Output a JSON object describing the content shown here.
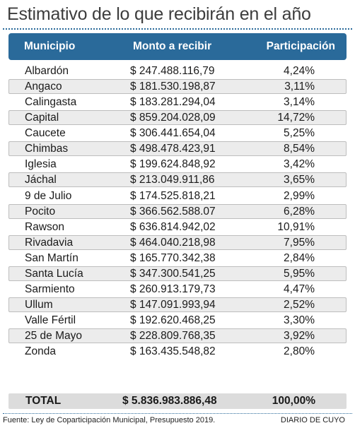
{
  "title": "Estimativo de lo que recibirán en el año",
  "headers": {
    "municipio": "Municipio",
    "monto": "Monto  a recibir",
    "participacion": "Participación"
  },
  "rows": [
    {
      "municipio": "Albardón",
      "monto": "$ 247.488.116,79",
      "participacion": "4,24%"
    },
    {
      "municipio": "Angaco",
      "monto": "$ 181.530.198,87",
      "participacion": "3,11%"
    },
    {
      "municipio": "Calingasta",
      "monto": "$ 183.281.294,04",
      "participacion": "3,14%"
    },
    {
      "municipio": "Capital",
      "monto": "$ 859.204.028,09",
      "participacion": "14,72%"
    },
    {
      "municipio": "Caucete",
      "monto": "$ 306.441.654,04",
      "participacion": "5,25%"
    },
    {
      "municipio": "Chimbas",
      "monto": "$ 498.478.423,91",
      "participacion": "8,54%"
    },
    {
      "municipio": "Iglesia",
      "monto": "$ 199.624.848,92",
      "participacion": "3,42%"
    },
    {
      "municipio": "Jáchal",
      "monto": "$ 213.049.911,86",
      "participacion": "3,65%"
    },
    {
      "municipio": "9 de Julio",
      "monto": "$ 174.525.818,21",
      "participacion": "2,99%"
    },
    {
      "municipio": "Pocito",
      "monto": "$ 366.562.588.07",
      "participacion": "6,28%"
    },
    {
      "municipio": "Rawson",
      "monto": "$ 636.814.942,02",
      "participacion": "10,91%"
    },
    {
      "municipio": "Rivadavia",
      "monto": "$ 464.040.218,98",
      "participacion": "7,95%"
    },
    {
      "municipio": "San Martín",
      "monto": "$ 165.770.342,38",
      "participacion": "2,84%"
    },
    {
      "municipio": "Santa Lucía",
      "monto": "$ 347.300.541,25",
      "participacion": "5,95%"
    },
    {
      "municipio": "Sarmiento",
      "monto": "$ 260.913.179,73",
      "participacion": "4,47%"
    },
    {
      "municipio": "Ullum",
      "monto": "$ 147.091.993,94",
      "participacion": "2,52%"
    },
    {
      "municipio": "Valle Fértil",
      "monto": "$ 192.620.468,25",
      "participacion": "3,30%"
    },
    {
      "municipio": "25 de Mayo",
      "monto": "$ 228.809.768,35",
      "participacion": "3,92%"
    },
    {
      "municipio": "Zonda",
      "monto": "$ 163.435.548,82",
      "participacion": "2,80%"
    }
  ],
  "total": {
    "municipio": "TOTAL",
    "monto": "$ 5.836.983.886,48",
    "participacion": "100,00%"
  },
  "source": "Fuente: Ley de Coparticipación Municipal, Presupuesto 2019.",
  "credit": "DIARIO DE CUYO",
  "colors": {
    "header_bg": "#2a6a9a",
    "stripe": "#ececec",
    "total_bg": "#dcdcdc"
  }
}
